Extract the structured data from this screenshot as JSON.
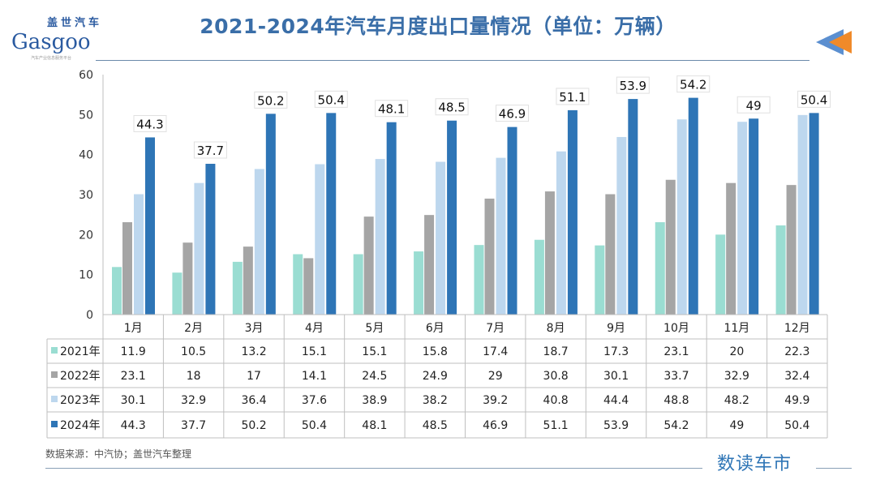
{
  "header": {
    "title": "2021-2024年汽车月度出口量情况（单位：万辆）",
    "logo_cn": "盖世汽车",
    "logo_en": "Gasgoo",
    "logo_sub": "汽车产业信息服务平台"
  },
  "footer": {
    "source": "数据来源：中汽协；盖世汽车整理",
    "brand": "数读车市"
  },
  "chart_data": {
    "type": "bar",
    "title": "2021-2024年汽车月度出口量情况（单位：万辆）",
    "categories": [
      "1月",
      "2月",
      "3月",
      "4月",
      "5月",
      "6月",
      "7月",
      "8月",
      "9月",
      "10月",
      "11月",
      "12月"
    ],
    "ylim": [
      0,
      60
    ],
    "yticks": [
      "0",
      "10",
      "20",
      "30",
      "40",
      "50",
      "60"
    ],
    "grid": false,
    "legend": "table-left",
    "data_labels_series": "2024年",
    "series": [
      {
        "name": "2021年",
        "color": "#9addd2",
        "values": [
          11.9,
          10.5,
          13.2,
          15.1,
          15.1,
          15.8,
          17.4,
          18.7,
          17.3,
          23.1,
          20,
          22.3
        ]
      },
      {
        "name": "2022年",
        "color": "#a5a5a5",
        "values": [
          23.1,
          18,
          17,
          14.1,
          24.5,
          24.9,
          29,
          30.8,
          30.1,
          33.7,
          32.9,
          32.4
        ]
      },
      {
        "name": "2023年",
        "color": "#bdd7ee",
        "values": [
          30.1,
          32.9,
          36.4,
          37.6,
          38.9,
          38.2,
          39.2,
          40.8,
          44.4,
          48.8,
          48.2,
          49.9
        ]
      },
      {
        "name": "2024年",
        "color": "#2e75b6",
        "values": [
          44.3,
          37.7,
          50.2,
          50.4,
          48.1,
          48.5,
          46.9,
          51.1,
          53.9,
          54.2,
          49,
          50.4
        ]
      }
    ]
  }
}
